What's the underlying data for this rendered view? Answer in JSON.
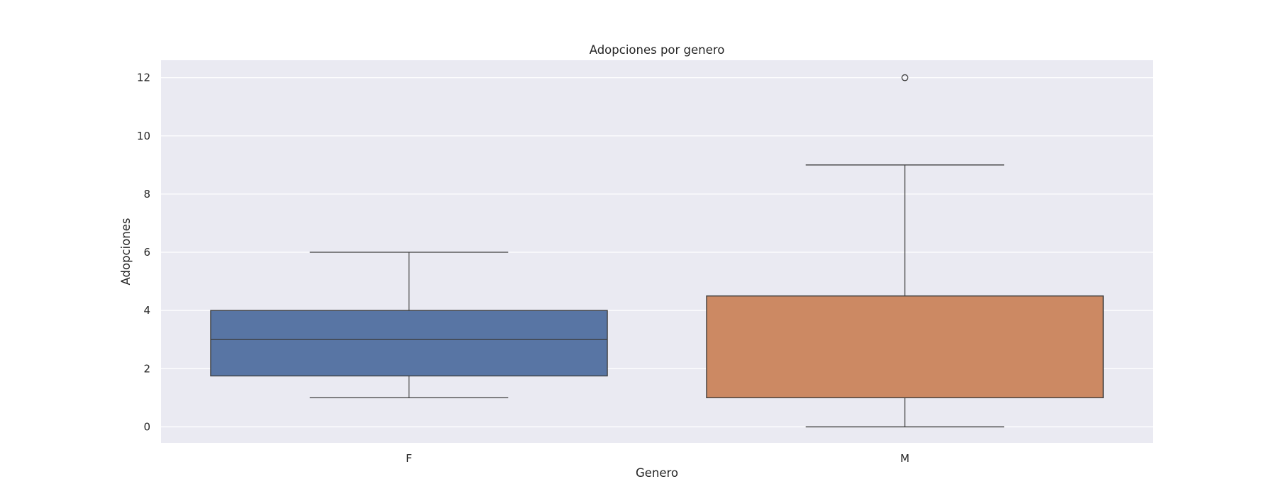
{
  "chart_data": {
    "type": "box",
    "title": "Adopciones por genero",
    "xlabel": "Genero",
    "ylabel": "Adopciones",
    "ylim": [
      -0.55,
      12.6
    ],
    "yticks": [
      0,
      2,
      4,
      6,
      8,
      10,
      12
    ],
    "grid": true,
    "legend": "none",
    "categories": [
      "F",
      "M"
    ],
    "boxes": [
      {
        "category": "F",
        "whisker_low": 1,
        "q1": 1.75,
        "median": 3,
        "q3": 4,
        "whisker_high": 6,
        "outliers": [],
        "color": "#5875a4"
      },
      {
        "category": "M",
        "whisker_low": 0,
        "q1": 1,
        "median": 4.5,
        "q3": 4.5,
        "whisker_high": 9,
        "outliers": [
          12
        ],
        "color": "#cc8963"
      }
    ],
    "colors": {
      "plot_background": "#eaeaf2",
      "gridline": "#ffffff",
      "box_edge": "#3d3d3d"
    }
  }
}
